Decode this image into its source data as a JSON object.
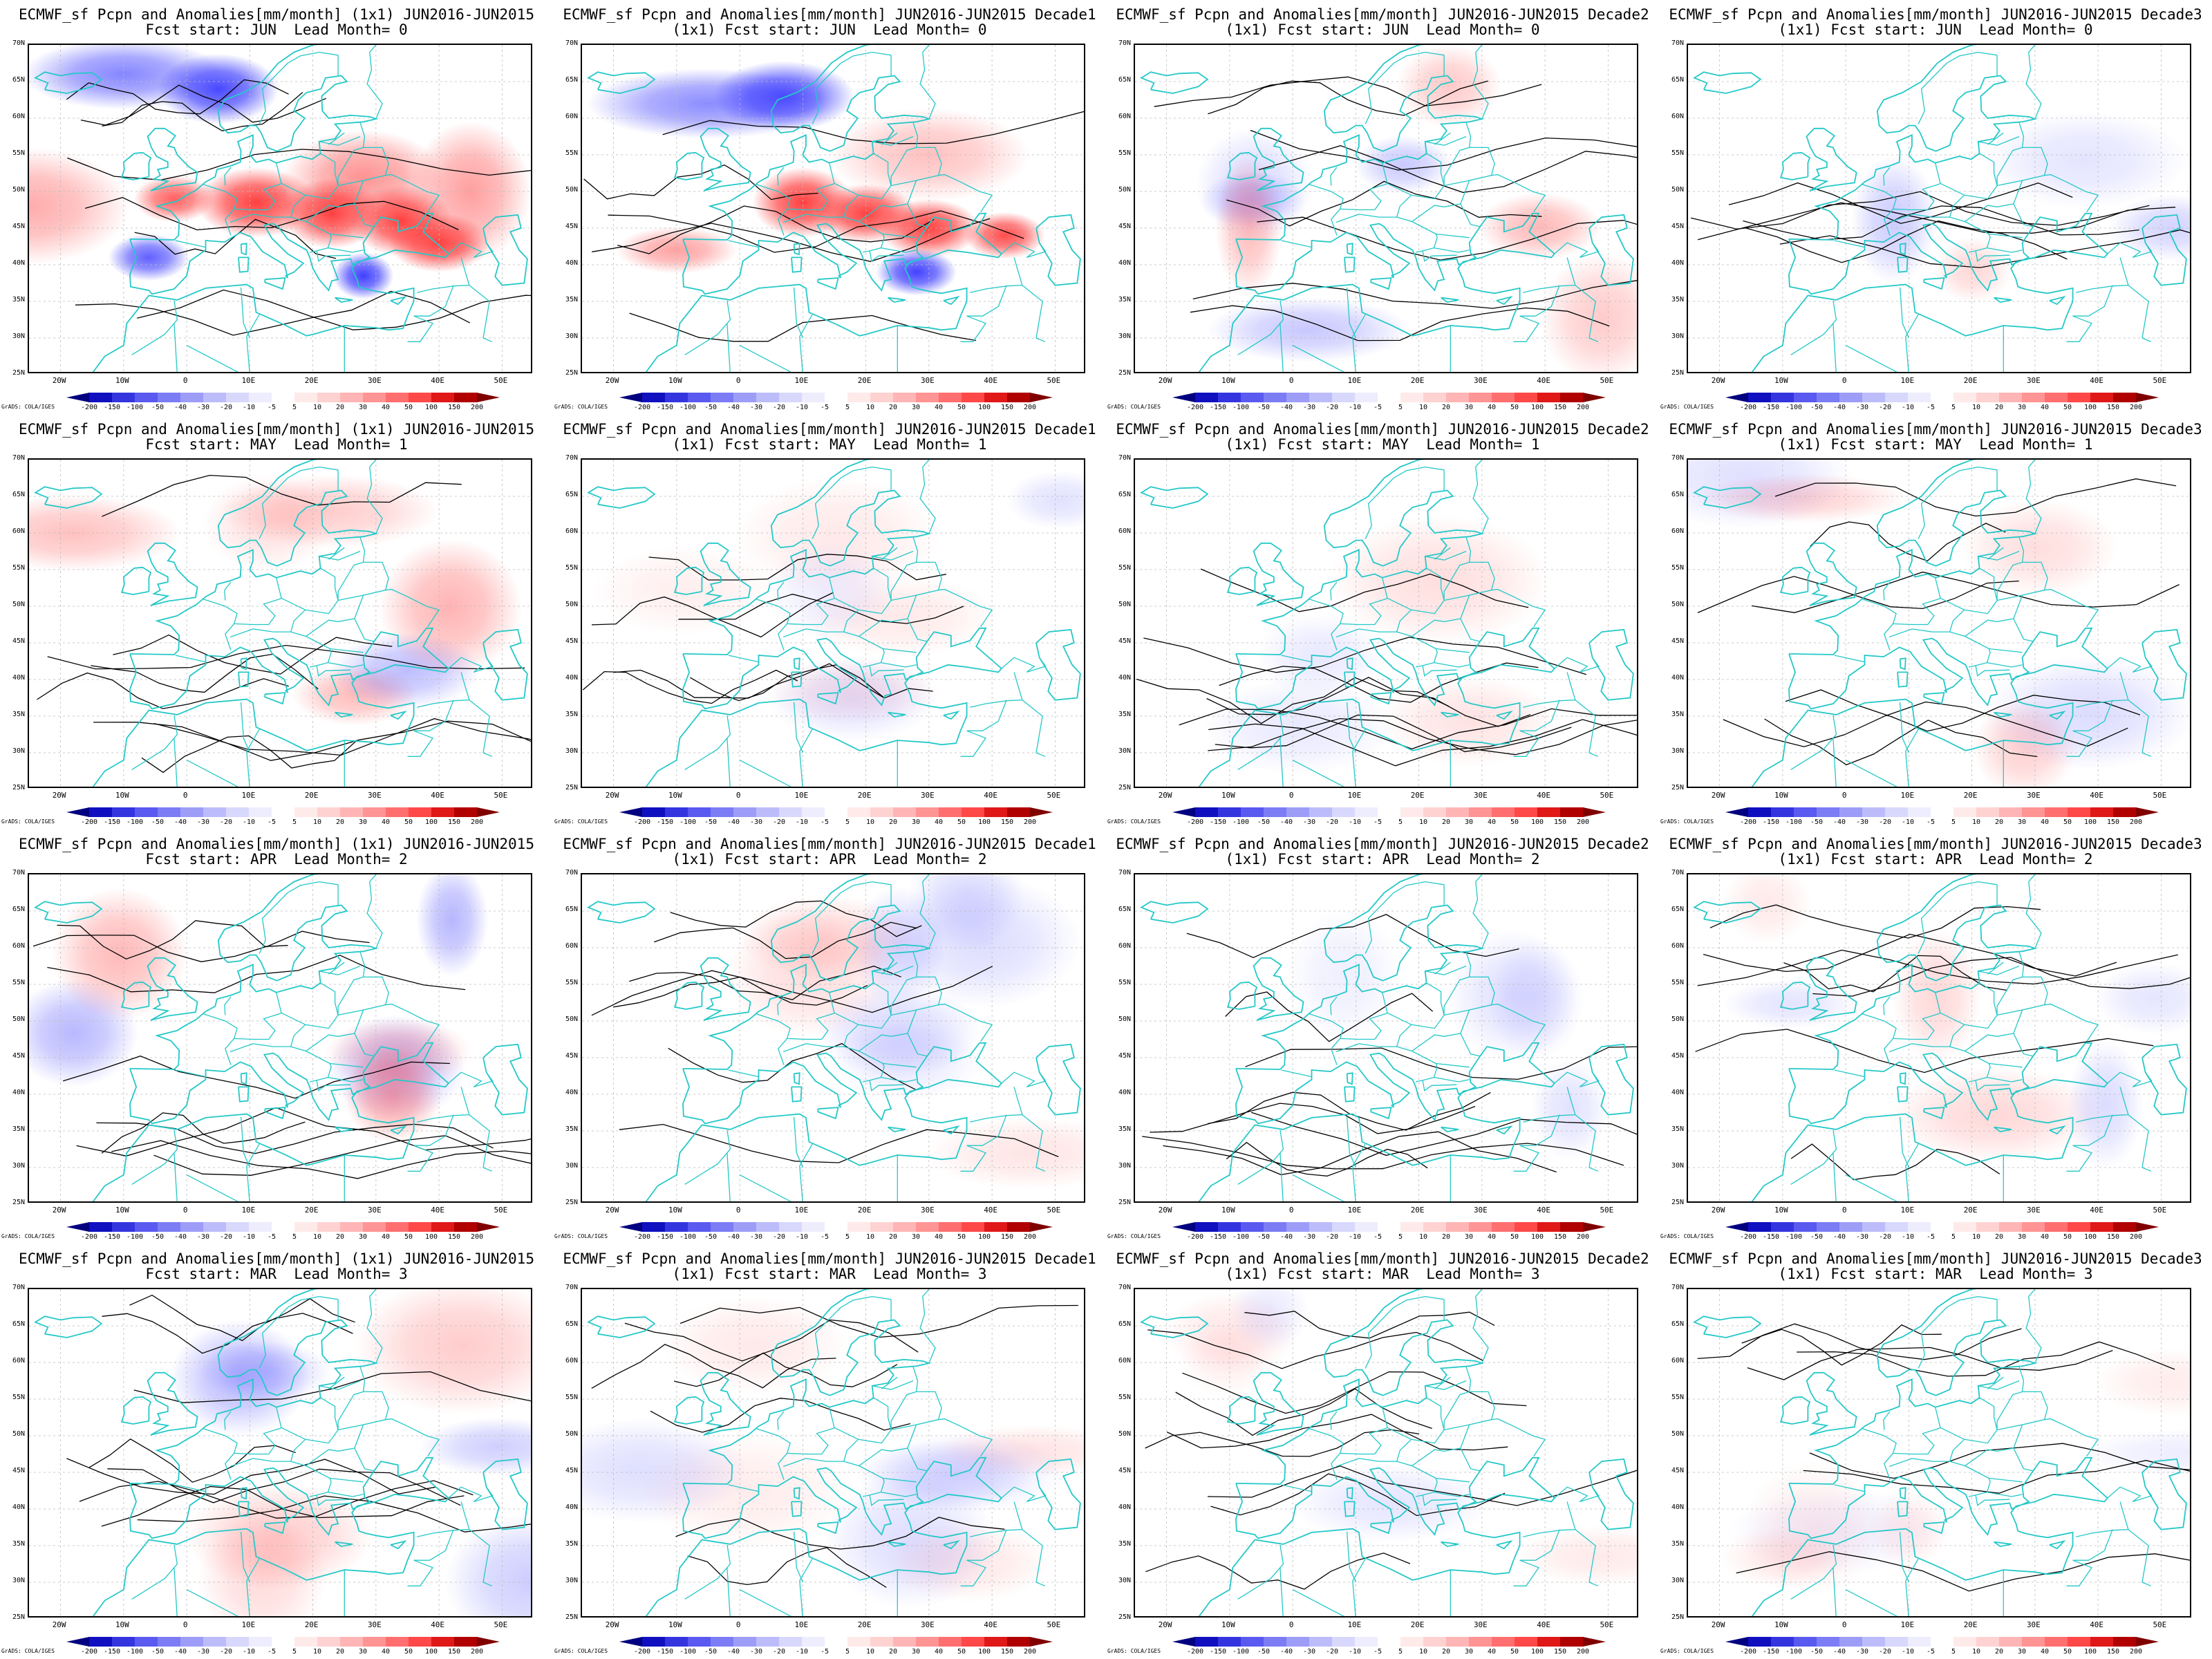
{
  "panels": [
    {
      "title1": "ECMWF_sf Pcpn and Anomalies[mm/month] (1x1) JUN2016-JUN2015",
      "title2": "Fcst start: JUN  Lead Month= 0",
      "intensity": 1.0,
      "seed": 1
    },
    {
      "title1": "ECMWF_sf Pcpn and Anomalies[mm/month] JUN2016-JUN2015 Decade1",
      "title2": "(1x1) Fcst start: JUN  Lead Month= 0",
      "intensity": 0.85,
      "seed": 2
    },
    {
      "title1": "ECMWF_sf Pcpn and Anomalies[mm/month] JUN2016-JUN2015 Decade2",
      "title2": "(1x1) Fcst start: JUN  Lead Month= 0",
      "intensity": 0.45,
      "seed": 3
    },
    {
      "title1": "ECMWF_sf Pcpn and Anomalies[mm/month] JUN2016-JUN2015 Decade3",
      "title2": "(1x1) Fcst start: JUN  Lead Month= 0",
      "intensity": 0.3,
      "seed": 4
    },
    {
      "title1": "ECMWF_sf Pcpn and Anomalies[mm/month] (1x1) JUN2016-JUN2015",
      "title2": "Fcst start: MAY  Lead Month= 1",
      "intensity": 0.4,
      "seed": 5
    },
    {
      "title1": "ECMWF_sf Pcpn and Anomalies[mm/month] JUN2016-JUN2015 Decade1",
      "title2": "(1x1) Fcst start: MAY  Lead Month= 1",
      "intensity": 0.12,
      "seed": 6
    },
    {
      "title1": "ECMWF_sf Pcpn and Anomalies[mm/month] JUN2016-JUN2015 Decade2",
      "title2": "(1x1) Fcst start: MAY  Lead Month= 1",
      "intensity": 0.18,
      "seed": 7
    },
    {
      "title1": "ECMWF_sf Pcpn and Anomalies[mm/month] JUN2016-JUN2015 Decade3",
      "title2": "(1x1) Fcst start: MAY  Lead Month= 1",
      "intensity": 0.22,
      "seed": 8
    },
    {
      "title1": "ECMWF_sf Pcpn and Anomalies[mm/month] (1x1) JUN2016-JUN2015",
      "title2": "Fcst start: APR  Lead Month= 2",
      "intensity": 0.5,
      "seed": 9
    },
    {
      "title1": "ECMWF_sf Pcpn and Anomalies[mm/month] JUN2016-JUN2015 Decade1",
      "title2": "(1x1) Fcst start: APR  Lead Month= 2",
      "intensity": 0.2,
      "seed": 10
    },
    {
      "title1": "ECMWF_sf Pcpn and Anomalies[mm/month] JUN2016-JUN2015 Decade2",
      "title2": "(1x1) Fcst start: APR  Lead Month= 2",
      "intensity": 0.12,
      "seed": 11
    },
    {
      "title1": "ECMWF_sf Pcpn and Anomalies[mm/month] JUN2016-JUN2015 Decade3",
      "title2": "(1x1) Fcst start: APR  Lead Month= 2",
      "intensity": 0.22,
      "seed": 12
    },
    {
      "title1": "ECMWF_sf Pcpn and Anomalies[mm/month] (1x1) JUN2016-JUN2015",
      "title2": "Fcst start: MAR  Lead Month= 3",
      "intensity": 0.35,
      "seed": 13
    },
    {
      "title1": "ECMWF_sf Pcpn and Anomalies[mm/month] JUN2016-JUN2015 Decade1",
      "title2": "(1x1) Fcst start: MAR  Lead Month= 3",
      "intensity": 0.15,
      "seed": 14
    },
    {
      "title1": "ECMWF_sf Pcpn and Anomalies[mm/month] JUN2016-JUN2015 Decade2",
      "title2": "(1x1) Fcst start: MAR  Lead Month= 3",
      "intensity": 0.1,
      "seed": 15
    },
    {
      "title1": "ECMWF_sf Pcpn and Anomalies[mm/month] JUN2016-JUN2015 Decade3",
      "title2": "(1x1) Fcst start: MAR  Lead Month= 3",
      "intensity": 0.08,
      "seed": 16
    }
  ],
  "lat_labels": [
    "70N",
    "65N",
    "60N",
    "55N",
    "50N",
    "45N",
    "40N",
    "35N",
    "30N",
    "25N"
  ],
  "lon_labels": [
    "20W",
    "10W",
    "0",
    "10E",
    "20E",
    "30E",
    "40E",
    "50E"
  ],
  "colorbar": {
    "labels": [
      "-200",
      "-150",
      "-100",
      "-50",
      "-40",
      "-30",
      "-20",
      "-10",
      "-5",
      "5",
      "10",
      "20",
      "30",
      "40",
      "50",
      "100",
      "150",
      "200"
    ],
    "colors": [
      "#000080",
      "#1010c0",
      "#3535e0",
      "#5a5af0",
      "#7c7cf5",
      "#9d9df8",
      "#bcbcfb",
      "#d8d8fd",
      "#ededfe",
      "#ffffff",
      "#ffeaea",
      "#ffd2d2",
      "#ffb5b5",
      "#ff9494",
      "#ff6f6f",
      "#ff4848",
      "#e01818",
      "#b00000",
      "#800000"
    ]
  },
  "credit": "GrADS: COLA/IGES",
  "colors": {
    "coast": "#25c8c8",
    "contour": "#000000",
    "pos": "#ff4040",
    "neg": "#4040ff"
  }
}
